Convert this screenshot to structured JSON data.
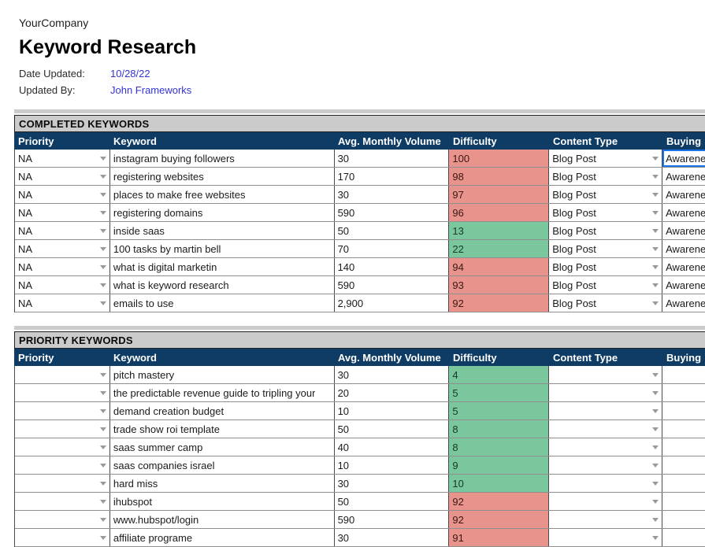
{
  "page": {
    "company": "YourCompany",
    "title": "Keyword Research",
    "date_updated_label": "Date Updated:",
    "date_updated_value": "10/28/22",
    "updated_by_label": "Updated By:",
    "updated_by_value": "John Frameworks"
  },
  "colors": {
    "header_bg": "#0f3c64",
    "section_bg": "#cbcbcb",
    "difficulty_red": "#e8938c",
    "difficulty_green": "#7ac79d",
    "link_blue": "#3333d6",
    "selection_blue": "#1a73e8"
  },
  "columns": [
    "Priority",
    "Keyword",
    "Avg. Monthly Volume",
    "Difficulty",
    "Content Type",
    "Buying"
  ],
  "tables": [
    {
      "section_title": "COMPLETED KEYWORDS",
      "rows": [
        {
          "priority": "NA",
          "keyword": "instagram buying followers",
          "volume": "30",
          "difficulty": "100",
          "difficulty_color": "red",
          "content_type": "Blog Post",
          "buying": "Awareness",
          "selected": true
        },
        {
          "priority": "NA",
          "keyword": "registering websites",
          "volume": "170",
          "difficulty": "98",
          "difficulty_color": "red",
          "content_type": "Blog Post",
          "buying": "Awareness",
          "selected": false
        },
        {
          "priority": "NA",
          "keyword": "places to make free websites",
          "volume": "30",
          "difficulty": "97",
          "difficulty_color": "red",
          "content_type": "Blog Post",
          "buying": "Awareness",
          "selected": false
        },
        {
          "priority": "NA",
          "keyword": "registering domains",
          "volume": "590",
          "difficulty": "96",
          "difficulty_color": "red",
          "content_type": "Blog Post",
          "buying": "Awareness",
          "selected": false
        },
        {
          "priority": "NA",
          "keyword": "inside saas",
          "volume": "50",
          "difficulty": "13",
          "difficulty_color": "green",
          "content_type": "Blog Post",
          "buying": "Awareness",
          "selected": false
        },
        {
          "priority": "NA",
          "keyword": "100 tasks by martin bell",
          "volume": "70",
          "difficulty": "22",
          "difficulty_color": "green",
          "content_type": "Blog Post",
          "buying": "Awareness",
          "selected": false
        },
        {
          "priority": "NA",
          "keyword": "what is digital marketin",
          "volume": "140",
          "difficulty": "94",
          "difficulty_color": "red",
          "content_type": "Blog Post",
          "buying": "Awareness",
          "selected": false
        },
        {
          "priority": "NA",
          "keyword": "what is keyword research",
          "volume": "590",
          "difficulty": "93",
          "difficulty_color": "red",
          "content_type": "Blog Post",
          "buying": "Awareness",
          "selected": false
        },
        {
          "priority": "NA",
          "keyword": "emails to use",
          "volume": "2,900",
          "difficulty": "92",
          "difficulty_color": "red",
          "content_type": "Blog Post",
          "buying": "Awareness",
          "selected": false
        }
      ]
    },
    {
      "section_title": "PRIORITY KEYWORDS",
      "rows": [
        {
          "priority": "",
          "keyword": "pitch mastery",
          "volume": "30",
          "difficulty": "4",
          "difficulty_color": "green",
          "content_type": "",
          "buying": "",
          "selected": false
        },
        {
          "priority": "",
          "keyword": "the predictable revenue guide to tripling your",
          "volume": "20",
          "difficulty": "5",
          "difficulty_color": "green",
          "content_type": "",
          "buying": "",
          "selected": false
        },
        {
          "priority": "",
          "keyword": "demand creation budget",
          "volume": "10",
          "difficulty": "5",
          "difficulty_color": "green",
          "content_type": "",
          "buying": "",
          "selected": false
        },
        {
          "priority": "",
          "keyword": "trade show roi template",
          "volume": "50",
          "difficulty": "8",
          "difficulty_color": "green",
          "content_type": "",
          "buying": "",
          "selected": false
        },
        {
          "priority": "",
          "keyword": "saas summer camp",
          "volume": "40",
          "difficulty": "8",
          "difficulty_color": "green",
          "content_type": "",
          "buying": "",
          "selected": false
        },
        {
          "priority": "",
          "keyword": "saas companies israel",
          "volume": "10",
          "difficulty": "9",
          "difficulty_color": "green",
          "content_type": "",
          "buying": "",
          "selected": false
        },
        {
          "priority": "",
          "keyword": "hard miss",
          "volume": "30",
          "difficulty": "10",
          "difficulty_color": "green",
          "content_type": "",
          "buying": "",
          "selected": false
        },
        {
          "priority": "",
          "keyword": "ihubspot",
          "volume": "50",
          "difficulty": "92",
          "difficulty_color": "red",
          "content_type": "",
          "buying": "",
          "selected": false
        },
        {
          "priority": "",
          "keyword": "www.hubspot/login",
          "volume": "590",
          "difficulty": "92",
          "difficulty_color": "red",
          "content_type": "",
          "buying": "",
          "selected": false
        },
        {
          "priority": "",
          "keyword": "affiliate programe",
          "volume": "30",
          "difficulty": "91",
          "difficulty_color": "red",
          "content_type": "",
          "buying": "",
          "selected": false
        }
      ]
    }
  ]
}
